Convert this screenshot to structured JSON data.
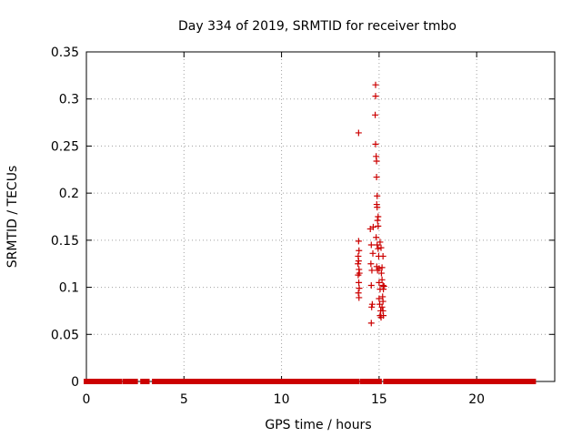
{
  "chart_data": {
    "type": "scatter",
    "title": "Day 334 of 2019, SRMTID for receiver tmbo",
    "xlabel": "GPS time / hours",
    "ylabel": "SRMTID / TECUs",
    "xlim": [
      0,
      24
    ],
    "ylim": [
      0,
      0.35
    ],
    "xticks": [
      0,
      5,
      10,
      15,
      20
    ],
    "xtick_labels": [
      "0",
      "5",
      "10",
      "15",
      "20"
    ],
    "yticks": [
      0,
      0.05,
      0.1,
      0.15,
      0.2,
      0.25,
      0.3,
      0.35
    ],
    "ytick_labels": [
      "0",
      "0.05",
      "0.1",
      "0.15",
      "0.2",
      "0.25",
      "0.3",
      "0.35"
    ],
    "grid": true,
    "marker": "+",
    "color": "#cc0000",
    "baseline_segments": [
      [
        0.0,
        1.7
      ],
      [
        2.0,
        2.2
      ],
      [
        2.4,
        2.5
      ],
      [
        2.9,
        3.1
      ],
      [
        3.5,
        13.85
      ],
      [
        14.15,
        14.55
      ],
      [
        14.8,
        15.0
      ],
      [
        15.35,
        21.9
      ],
      [
        22.05,
        22.9
      ]
    ],
    "series": [
      {
        "name": "SRMTID",
        "points": [
          [
            13.95,
            0.264
          ],
          [
            13.95,
            0.149
          ],
          [
            13.97,
            0.139
          ],
          [
            13.93,
            0.133
          ],
          [
            13.95,
            0.128
          ],
          [
            13.97,
            0.119
          ],
          [
            13.93,
            0.113
          ],
          [
            13.96,
            0.105
          ],
          [
            13.98,
            0.099
          ],
          [
            13.94,
            0.094
          ],
          [
            13.97,
            0.089
          ],
          [
            13.99,
            0.115
          ],
          [
            13.92,
            0.125
          ],
          [
            14.55,
            0.162
          ],
          [
            14.6,
            0.145
          ],
          [
            14.58,
            0.125
          ],
          [
            14.63,
            0.118
          ],
          [
            14.6,
            0.102
          ],
          [
            14.65,
            0.082
          ],
          [
            14.62,
            0.079
          ],
          [
            14.6,
            0.062
          ],
          [
            14.68,
            0.136
          ],
          [
            14.7,
            0.164
          ],
          [
            14.82,
            0.315
          ],
          [
            14.82,
            0.303
          ],
          [
            14.8,
            0.283
          ],
          [
            14.82,
            0.252
          ],
          [
            14.85,
            0.239
          ],
          [
            14.87,
            0.234
          ],
          [
            14.87,
            0.217
          ],
          [
            14.9,
            0.197
          ],
          [
            14.88,
            0.188
          ],
          [
            14.9,
            0.185
          ],
          [
            14.95,
            0.175
          ],
          [
            14.92,
            0.171
          ],
          [
            14.95,
            0.165
          ],
          [
            14.85,
            0.153
          ],
          [
            14.9,
            0.145
          ],
          [
            14.95,
            0.141
          ],
          [
            14.88,
            0.122
          ],
          [
            14.92,
            0.118
          ],
          [
            15.0,
            0.12
          ],
          [
            14.98,
            0.133
          ],
          [
            15.05,
            0.148
          ],
          [
            15.1,
            0.142
          ],
          [
            15.0,
            0.105
          ],
          [
            15.05,
            0.098
          ],
          [
            15.0,
            0.088
          ],
          [
            15.03,
            0.082
          ],
          [
            15.08,
            0.075
          ],
          [
            15.05,
            0.07
          ],
          [
            15.1,
            0.068
          ],
          [
            15.15,
            0.121
          ],
          [
            15.2,
            0.133
          ],
          [
            15.15,
            0.108
          ],
          [
            15.2,
            0.102
          ],
          [
            15.22,
            0.098
          ],
          [
            15.18,
            0.09
          ],
          [
            15.2,
            0.085
          ],
          [
            15.15,
            0.079
          ],
          [
            15.2,
            0.075
          ],
          [
            15.22,
            0.07
          ],
          [
            15.25,
            0.101
          ],
          [
            15.12,
            0.115
          ]
        ]
      }
    ]
  }
}
